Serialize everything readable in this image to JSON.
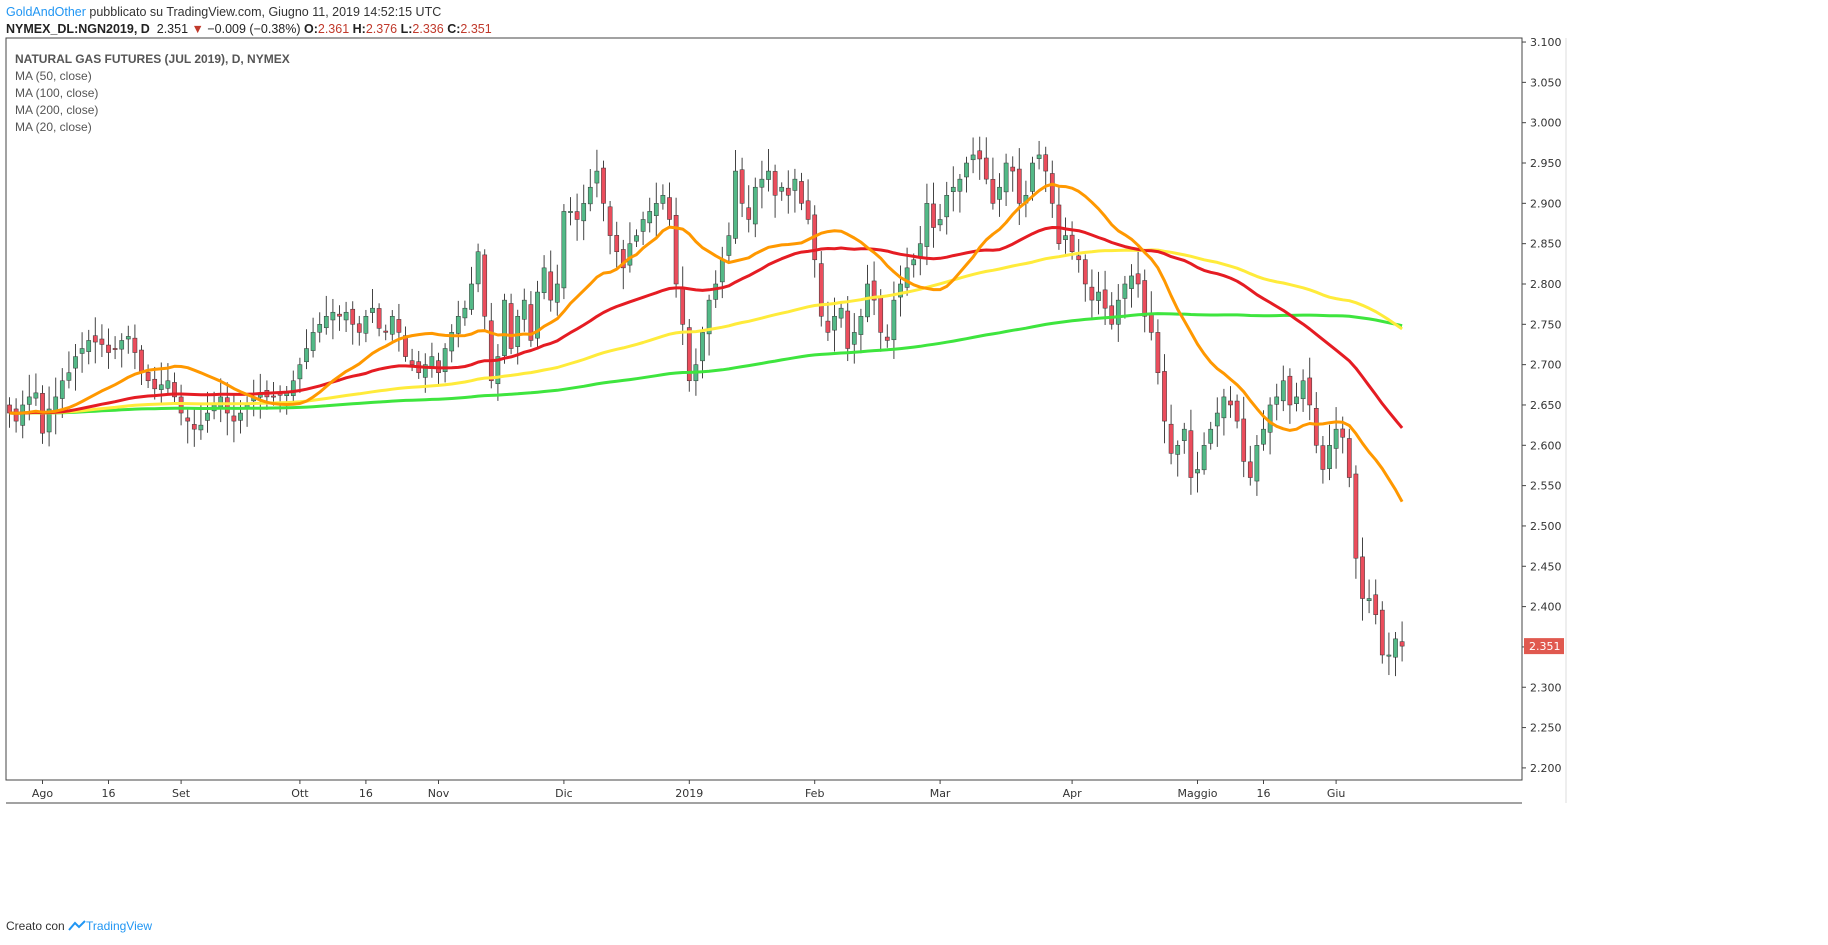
{
  "header": {
    "author": "GoldAndOther",
    "published": "pubblicato su TradingView.com, Giugno 11, 2019 14:52:15 UTC"
  },
  "symbol_bar": {
    "symbol": "NYMEX_DL:NGN2019, D",
    "price": "2.351",
    "change": "−0.009 (−0.38%)",
    "o_label": "O:",
    "o_value": "2.361",
    "h_label": "H:",
    "h_value": "2.376",
    "l_label": "L:",
    "l_value": "2.336",
    "c_label": "C:",
    "c_value": "2.351"
  },
  "legend": {
    "title": "NATURAL GAS FUTURES (JUL 2019), D, NYMEX",
    "ma_labels": [
      "MA (50, close)",
      "MA (100, close)",
      "MA (200, close)",
      "MA (20, close)"
    ]
  },
  "footer": {
    "prefix": "Creato con",
    "brand": "TradingView"
  },
  "colors": {
    "up_candle": "#53b987",
    "down_candle": "#eb4d5c",
    "ma20": "#ff9800",
    "ma50": "#e51c23",
    "ma100": "#ffeb3b",
    "ma200": "#3ee53e",
    "price_tag": "#e0594f"
  },
  "chart_data": {
    "type": "candlestick",
    "y_ticks": [
      "3.100",
      "3.050",
      "3.000",
      "2.950",
      "2.900",
      "2.850",
      "2.800",
      "2.750",
      "2.700",
      "2.650",
      "2.600",
      "2.550",
      "2.500",
      "2.450",
      "2.400",
      "2.350",
      "2.300",
      "2.250",
      "2.200"
    ],
    "ylim": [
      2.185,
      3.105
    ],
    "x_ticks": [
      {
        "label": "Ago",
        "bar": 5
      },
      {
        "label": "16",
        "bar": 15
      },
      {
        "label": "Set",
        "bar": 26
      },
      {
        "label": "Ott",
        "bar": 44
      },
      {
        "label": "16",
        "bar": 54
      },
      {
        "label": "Nov",
        "bar": 65
      },
      {
        "label": "Dic",
        "bar": 84
      },
      {
        "label": "2019",
        "bar": 103
      },
      {
        "label": "Feb",
        "bar": 122
      },
      {
        "label": "Mar",
        "bar": 141
      },
      {
        "label": "Apr",
        "bar": 161
      },
      {
        "label": "Maggio",
        "bar": 180
      },
      {
        "label": "16",
        "bar": 190
      },
      {
        "label": "Giu",
        "bar": 201
      }
    ],
    "last_price": "2.351",
    "closes": [
      2.64,
      2.63,
      2.65,
      2.66,
      2.665,
      2.615,
      2.645,
      2.66,
      2.68,
      2.69,
      2.71,
      2.72,
      2.73,
      2.728,
      2.725,
      2.715,
      2.72,
      2.73,
      2.735,
      2.715,
      2.69,
      2.68,
      2.67,
      2.675,
      2.68,
      2.66,
      2.64,
      2.63,
      2.62,
      2.625,
      2.64,
      2.65,
      2.66,
      2.64,
      2.63,
      2.64,
      2.65,
      2.66,
      2.665,
      2.66,
      2.66,
      2.662,
      2.665,
      2.68,
      2.7,
      2.72,
      2.74,
      2.75,
      2.76,
      2.765,
      2.76,
      2.765,
      2.75,
      2.74,
      2.76,
      2.77,
      2.745,
      2.74,
      2.76,
      2.74,
      2.71,
      2.7,
      2.69,
      2.7,
      2.71,
      2.69,
      2.72,
      2.74,
      2.76,
      2.77,
      2.8,
      2.84,
      2.76,
      2.68,
      2.71,
      2.78,
      2.72,
      2.76,
      2.78,
      2.73,
      2.79,
      2.82,
      2.78,
      2.8,
      2.89,
      2.89,
      2.88,
      2.9,
      2.92,
      2.94,
      2.9,
      2.86,
      2.84,
      2.82,
      2.85,
      2.86,
      2.88,
      2.89,
      2.9,
      2.91,
      2.88,
      2.8,
      2.75,
      2.68,
      2.7,
      2.74,
      2.78,
      2.8,
      2.83,
      2.86,
      2.94,
      2.9,
      2.88,
      2.92,
      2.93,
      2.94,
      2.91,
      2.92,
      2.91,
      2.93,
      2.9,
      2.88,
      2.83,
      2.76,
      2.74,
      2.76,
      2.77,
      2.72,
      2.74,
      2.76,
      2.8,
      2.78,
      2.74,
      2.73,
      2.78,
      2.8,
      2.82,
      2.83,
      2.85,
      2.9,
      2.87,
      2.88,
      2.91,
      2.92,
      2.93,
      2.95,
      2.96,
      2.955,
      2.93,
      2.9,
      2.92,
      2.95,
      2.94,
      2.9,
      2.91,
      2.95,
      2.96,
      2.94,
      2.9,
      2.85,
      2.86,
      2.84,
      2.83,
      2.8,
      2.78,
      2.79,
      2.77,
      2.75,
      2.78,
      2.8,
      2.81,
      2.8,
      2.76,
      2.74,
      2.69,
      2.63,
      2.59,
      2.6,
      2.62,
      2.56,
      2.57,
      2.6,
      2.62,
      2.64,
      2.66,
      2.65,
      2.63,
      2.58,
      2.56,
      2.6,
      2.62,
      2.65,
      2.66,
      2.68,
      2.65,
      2.66,
      2.68,
      2.65,
      2.6,
      2.57,
      2.6,
      2.62,
      2.61,
      2.56,
      2.46,
      2.41,
      2.41,
      2.39,
      2.34,
      2.34,
      2.36,
      2.351
    ]
  }
}
